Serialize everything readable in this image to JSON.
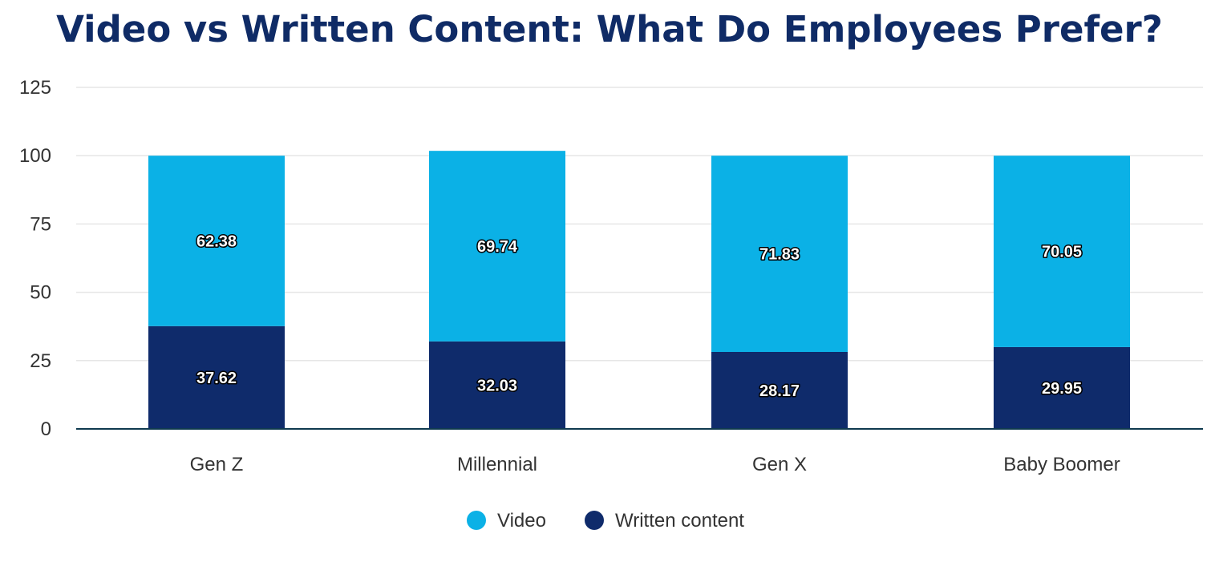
{
  "chart_data": {
    "type": "bar",
    "stacked": true,
    "title": "Video vs Written Content: What Do Employees Prefer?",
    "xlabel": "",
    "ylabel": "",
    "categories": [
      "Gen Z",
      "Millennial",
      "Gen X",
      "Baby Boomer"
    ],
    "series": [
      {
        "name": "Written content",
        "color": "#0f2b6b",
        "values": [
          37.62,
          32.03,
          28.17,
          29.95
        ]
      },
      {
        "name": "Video",
        "color": "#0bb1e6",
        "values": [
          62.38,
          69.74,
          71.83,
          70.05
        ]
      }
    ],
    "ylim": [
      0,
      125
    ],
    "yticks": [
      0,
      25,
      50,
      75,
      100,
      125
    ],
    "grid": true,
    "legend": {
      "position": "bottom",
      "order": [
        "Video",
        "Written content"
      ]
    },
    "colors": {
      "title": "#0f2b66",
      "axis_line": "#0f3a4f",
      "gridline": "#e6e6e6"
    }
  }
}
